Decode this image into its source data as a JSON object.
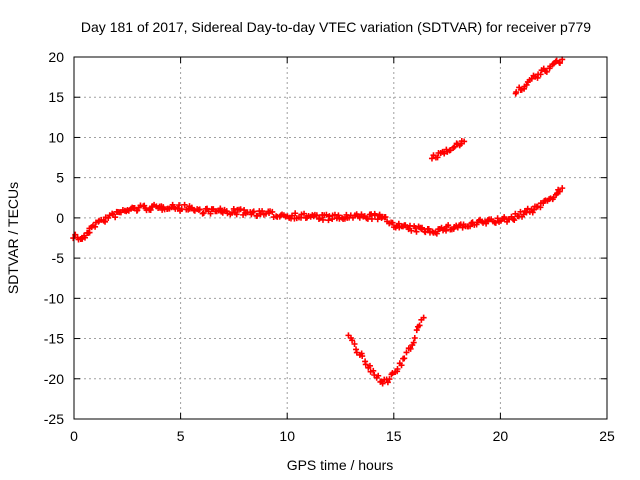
{
  "chart_data": {
    "type": "scatter",
    "title": "Day 181 of 2017, Sidereal Day-to-day VTEC variation (SDTVAR) for receiver p779",
    "xlabel": "GPS time / hours",
    "ylabel": "SDTVAR / TECUs",
    "xlim": [
      0,
      25
    ],
    "ylim": [
      -25,
      20
    ],
    "x_ticks": [
      0,
      5,
      10,
      15,
      20,
      25
    ],
    "y_ticks": [
      -25,
      -20,
      -15,
      -10,
      -5,
      0,
      5,
      10,
      15,
      20
    ],
    "grid": true,
    "marker": "+",
    "series_color": "#ff0000",
    "series": [
      {
        "name": "main trace",
        "points": [
          [
            0,
            -2.2
          ],
          [
            0.3,
            -2.6
          ],
          [
            0.6,
            -2.2
          ],
          [
            0.8,
            -1.0
          ],
          [
            1.2,
            -0.5
          ],
          [
            1.6,
            0.0
          ],
          [
            2.0,
            0.5
          ],
          [
            2.5,
            1.0
          ],
          [
            3.0,
            1.2
          ],
          [
            3.5,
            1.3
          ],
          [
            4.0,
            1.2
          ],
          [
            4.5,
            1.5
          ],
          [
            5.0,
            1.2
          ],
          [
            5.4,
            1.4
          ],
          [
            5.6,
            1.0
          ],
          [
            6.0,
            0.9
          ],
          [
            7.0,
            0.8
          ],
          [
            8.0,
            0.7
          ],
          [
            9.0,
            0.5
          ],
          [
            10.0,
            0.3
          ],
          [
            11.0,
            0.2
          ],
          [
            12.0,
            0.0
          ],
          [
            13.0,
            0.1
          ],
          [
            14.0,
            0.2
          ],
          [
            14.5,
            0.0
          ],
          [
            15.0,
            -0.8
          ],
          [
            15.5,
            -1.2
          ],
          [
            16.0,
            -1.4
          ],
          [
            16.5,
            -1.5
          ],
          [
            17.0,
            -1.6
          ],
          [
            17.5,
            -1.3
          ],
          [
            18.0,
            -1.0
          ],
          [
            18.5,
            -1.0
          ],
          [
            19.0,
            -0.6
          ],
          [
            19.5,
            -0.4
          ],
          [
            20.0,
            -0.3
          ],
          [
            20.5,
            -0.1
          ],
          [
            21.0,
            0.5
          ],
          [
            21.5,
            1.0
          ],
          [
            22.0,
            1.8
          ],
          [
            22.5,
            2.8
          ],
          [
            22.9,
            3.7
          ]
        ]
      },
      {
        "name": "dip arc",
        "points": [
          [
            12.9,
            -14.8
          ],
          [
            13.3,
            -16.5
          ],
          [
            13.7,
            -18.2
          ],
          [
            14.1,
            -19.6
          ],
          [
            14.5,
            -20.3
          ],
          [
            14.8,
            -20.0
          ],
          [
            15.2,
            -18.8
          ],
          [
            15.6,
            -17.0
          ],
          [
            16.0,
            -14.8
          ],
          [
            16.4,
            -12.4
          ]
        ]
      },
      {
        "name": "segment 16.8-18.3h",
        "points": [
          [
            16.8,
            7.5
          ],
          [
            17.2,
            8.0
          ],
          [
            17.6,
            8.7
          ],
          [
            18.0,
            9.1
          ],
          [
            18.3,
            9.5
          ]
        ]
      },
      {
        "name": "segment 20.7-22.9h",
        "points": [
          [
            20.7,
            15.5
          ],
          [
            21.0,
            16.2
          ],
          [
            21.4,
            17.0
          ],
          [
            21.8,
            17.8
          ],
          [
            22.2,
            18.5
          ],
          [
            22.6,
            19.2
          ],
          [
            22.9,
            19.7
          ]
        ]
      }
    ]
  }
}
